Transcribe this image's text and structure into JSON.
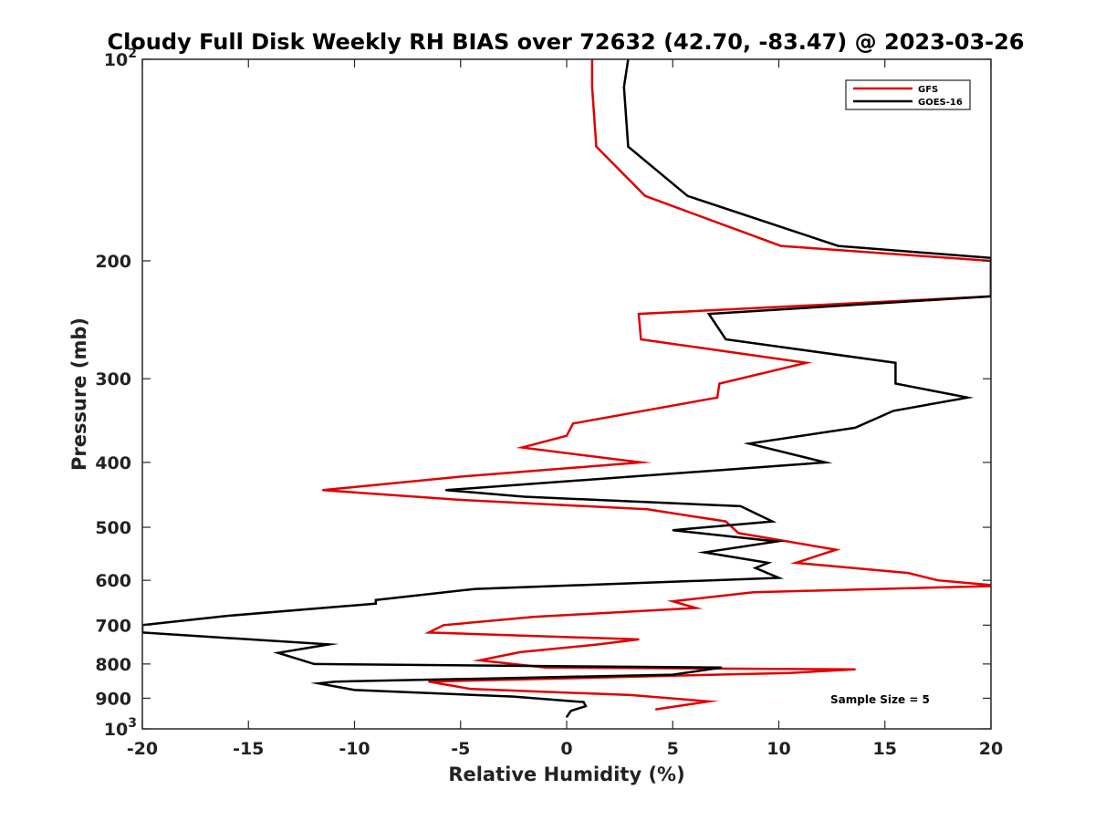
{
  "chart_data": {
    "type": "line",
    "title": "Cloudy Full Disk Weekly RH BIAS over 72632 (42.70, -83.47) @ 2023-03-26",
    "xlabel": "Relative Humidity (%)",
    "ylabel": "Pressure (mb)",
    "xlim": [
      -20,
      20
    ],
    "ylim": [
      100,
      1000
    ],
    "y_scale": "log",
    "y_reversed": true,
    "grid": false,
    "legend_position": "top-right",
    "x_ticks": [
      {
        "value": -20,
        "label": "-20"
      },
      {
        "value": -15,
        "label": "-15"
      },
      {
        "value": -10,
        "label": "-10"
      },
      {
        "value": -5,
        "label": "-5"
      },
      {
        "value": 0,
        "label": "0"
      },
      {
        "value": 5,
        "label": "5"
      },
      {
        "value": 10,
        "label": "10"
      },
      {
        "value": 15,
        "label": "15"
      },
      {
        "value": 20,
        "label": "20"
      }
    ],
    "y_ticks": [
      {
        "value": 100,
        "base": "10",
        "exp": "2"
      },
      {
        "value": 200,
        "label": "200"
      },
      {
        "value": 300,
        "label": "300"
      },
      {
        "value": 400,
        "label": "400"
      },
      {
        "value": 500,
        "label": "500"
      },
      {
        "value": 600,
        "label": "600"
      },
      {
        "value": 700,
        "label": "700"
      },
      {
        "value": 800,
        "label": "800"
      },
      {
        "value": 900,
        "label": "900"
      },
      {
        "value": 1000,
        "base": "10",
        "exp": "3"
      }
    ],
    "series": [
      {
        "name": "GFS",
        "color": "#e00000",
        "points": [
          [
            1.2,
            100
          ],
          [
            1.2,
            110
          ],
          [
            1.4,
            135
          ],
          [
            3.7,
            160
          ],
          [
            10.1,
            190
          ],
          [
            20.0,
            200
          ],
          [
            20.0,
            225
          ],
          [
            20.0,
            226
          ],
          [
            3.4,
            240
          ],
          [
            3.5,
            262
          ],
          [
            11.3,
            284
          ],
          [
            7.2,
            305
          ],
          [
            7.1,
            320
          ],
          [
            0.3,
            350
          ],
          [
            0.0,
            365
          ],
          [
            -2.1,
            380
          ],
          [
            3.5,
            400
          ],
          [
            -5.0,
            420
          ],
          [
            -11.5,
            440
          ],
          [
            -5.0,
            455
          ],
          [
            3.8,
            470
          ],
          [
            7.5,
            490
          ],
          [
            8.1,
            510
          ],
          [
            12.7,
            540
          ],
          [
            10.8,
            565
          ],
          [
            16.1,
            585
          ],
          [
            17.5,
            600
          ],
          [
            20.0,
            610
          ],
          [
            20.0,
            612
          ],
          [
            8.8,
            625
          ],
          [
            5.0,
            645
          ],
          [
            6.1,
            660
          ],
          [
            -1.5,
            680
          ],
          [
            -5.8,
            700
          ],
          [
            -6.5,
            718
          ],
          [
            3.4,
            735
          ],
          [
            1.5,
            748
          ],
          [
            -2.2,
            768
          ],
          [
            -4.1,
            790
          ],
          [
            -1.0,
            810
          ],
          [
            13.6,
            815
          ],
          [
            10.5,
            825
          ],
          [
            -6.5,
            850
          ],
          [
            -5.6,
            860
          ],
          [
            -4.5,
            872
          ],
          [
            3.0,
            890
          ],
          [
            6.7,
            910
          ],
          [
            4.2,
            935
          ]
        ]
      },
      {
        "name": "GOES-16",
        "color": "#000000",
        "points": [
          [
            2.9,
            100
          ],
          [
            2.7,
            110
          ],
          [
            2.9,
            135
          ],
          [
            5.7,
            160
          ],
          [
            12.8,
            190
          ],
          [
            20.0,
            198
          ],
          [
            20.0,
            225
          ],
          [
            20.0,
            226
          ],
          [
            6.7,
            240
          ],
          [
            7.5,
            262
          ],
          [
            15.5,
            284
          ],
          [
            15.5,
            305
          ],
          [
            18.9,
            320
          ],
          [
            15.4,
            335
          ],
          [
            13.6,
            355
          ],
          [
            8.6,
            375
          ],
          [
            12.2,
            400
          ],
          [
            -5.7,
            440
          ],
          [
            -2.0,
            450
          ],
          [
            8.2,
            465
          ],
          [
            9.7,
            490
          ],
          [
            5.0,
            505
          ],
          [
            9.9,
            525
          ],
          [
            6.5,
            545
          ],
          [
            9.5,
            565
          ],
          [
            8.9,
            575
          ],
          [
            10.0,
            595
          ],
          [
            -4.3,
            618
          ],
          [
            -9.0,
            642
          ],
          [
            -9.0,
            650
          ],
          [
            -16.0,
            678
          ],
          [
            -20.0,
            700
          ],
          [
            -20.0,
            702
          ],
          [
            -20.0,
            718
          ],
          [
            -11.2,
            748
          ],
          [
            -13.6,
            770
          ],
          [
            -11.9,
            800
          ],
          [
            7.3,
            810
          ],
          [
            5.0,
            830
          ],
          [
            -10.9,
            850
          ],
          [
            -11.7,
            855
          ],
          [
            -10.0,
            875
          ],
          [
            -2.5,
            895
          ],
          [
            0.8,
            912
          ],
          [
            0.9,
            925
          ],
          [
            0.2,
            940
          ],
          [
            0.0,
            960
          ]
        ]
      }
    ],
    "annotations": [
      "Sample Size = 5"
    ]
  }
}
